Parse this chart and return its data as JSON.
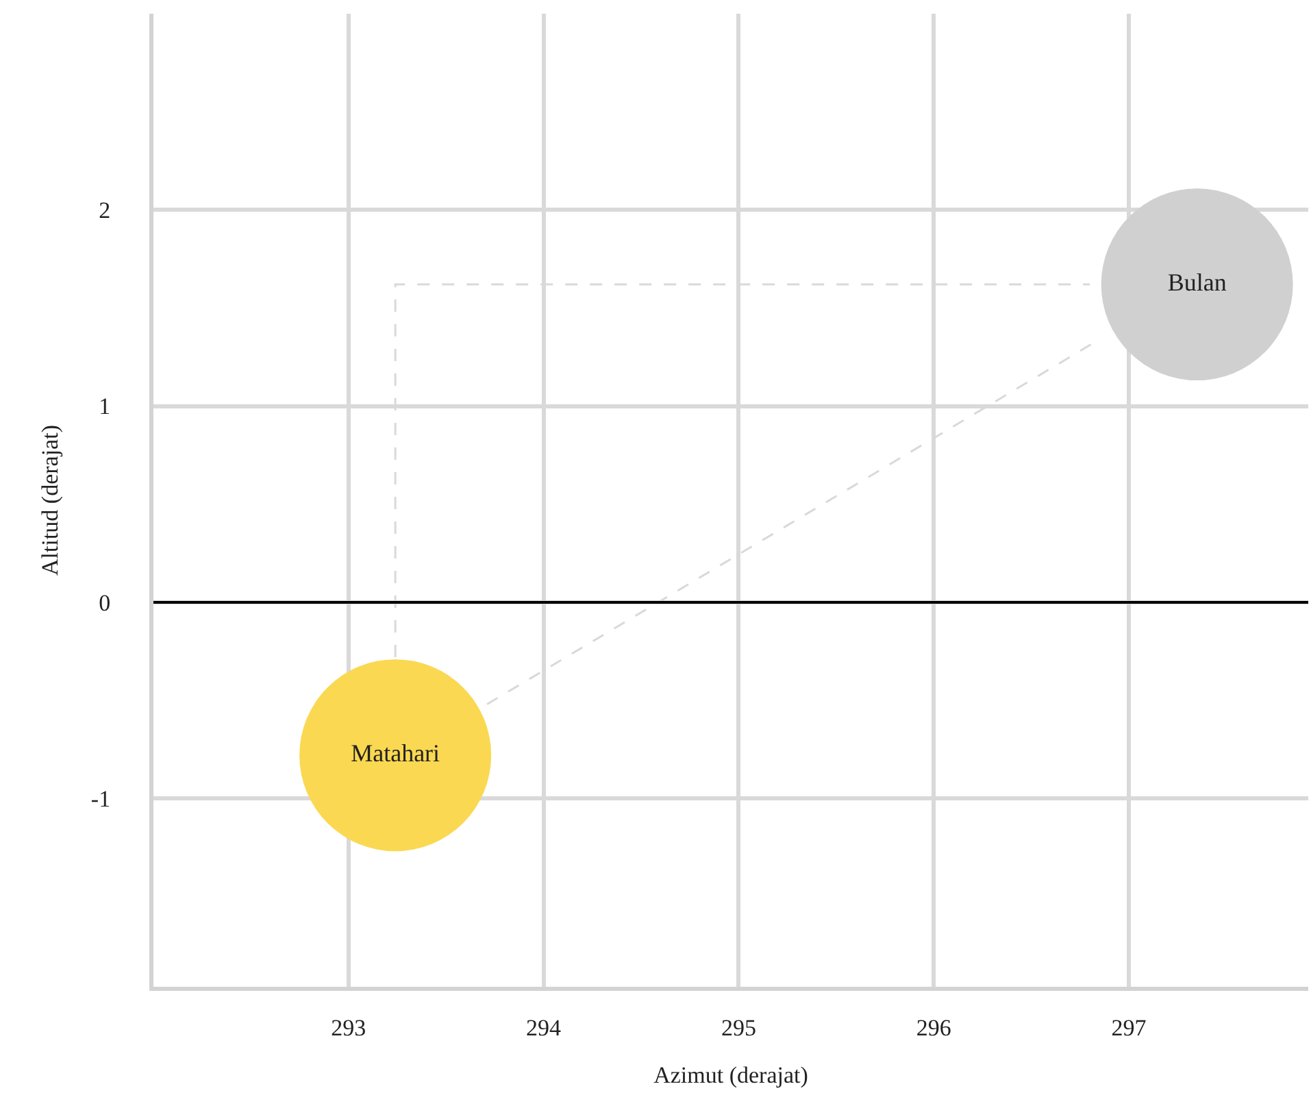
{
  "chart_data": {
    "type": "bubble",
    "xlabel": "Azimut (derajat)",
    "ylabel": "Altitud (derajat)",
    "xlim": [
      292,
      297.92
    ],
    "xticks": [
      293,
      294,
      295,
      296,
      297
    ],
    "ylim": [
      -1.96,
      3
    ],
    "yticks": [
      -1,
      0,
      1,
      2
    ],
    "grid": true,
    "legend": false,
    "ref_lines": [
      {
        "axis": "y",
        "value": 0,
        "color": "#000000"
      }
    ],
    "series": [
      {
        "type": "line",
        "color": "#d9d9d9",
        "line_style": "dashed",
        "x": [
          293.24,
          293.24,
          296.8
        ],
        "values": [
          -0.28,
          1.62,
          1.62
        ]
      },
      {
        "type": "line",
        "color": "#d9d9d9",
        "line_style": "dashed",
        "x": [
          293.71,
          296.85
        ],
        "values": [
          -0.52,
          1.34
        ]
      },
      {
        "name": "Matahari",
        "color": "#fad851",
        "x": [
          293.24
        ],
        "values": [
          -0.78
        ],
        "sizes": [
          1
        ]
      },
      {
        "name": "Bulan",
        "color": "#d0d0d0",
        "x": [
          297.35
        ],
        "values": [
          1.62
        ],
        "sizes": [
          1
        ]
      }
    ]
  }
}
